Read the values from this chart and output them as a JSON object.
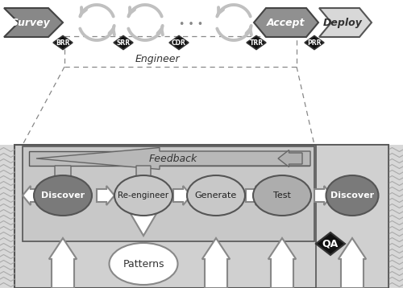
{
  "bg_color": "#ffffff",
  "wavy_bg": "#e8e8e8",
  "bottom_outer_bg": "#d0d0d0",
  "inner_loop_bg": "#c8c8c8",
  "feedback_bar_color": "#c0c0c0",
  "right_section_bg": "#d0d0d0",
  "survey_color": "#888888",
  "accept_color": "#909090",
  "deploy_color": "#d8d8d8",
  "cycle_color": "#c0c0c0",
  "discover_dark": "#7a7a7a",
  "reengineer_color": "#c8c8c8",
  "generate_color": "#c8c8c8",
  "test_color": "#adadad",
  "discover2_dark": "#7a7a7a",
  "patterns_color": "#ffffff",
  "arrow_white": "#ffffff",
  "arrow_gray": "#b0b0b0",
  "diamond_black": "#111111",
  "phases_top": [
    "Survey",
    "Accept",
    "Deploy"
  ],
  "review_labels": [
    "BRR",
    "SRR",
    "CDR",
    "TRR",
    "PRR"
  ],
  "engineer_label": "Engineer",
  "feedback_label": "Feedback",
  "inner_nodes": [
    "Discover",
    "Re-engineer",
    "Generate",
    "Test",
    "Discover"
  ],
  "patterns_label": "Patterns",
  "qa_label": "QA"
}
